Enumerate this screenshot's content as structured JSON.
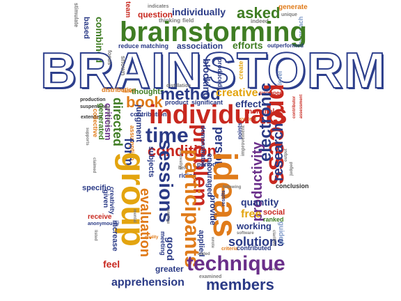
{
  "title": "BRAINSTORM",
  "palette": {
    "green": "#3f7d23",
    "orange": "#e07b1a",
    "yellow": "#e3a40f",
    "navy": "#2a3a86",
    "red": "#c8281f",
    "purple": "#6a2f8a",
    "gray": "#7a7a7a",
    "lightblue": "#7f9ac8"
  },
  "words": {
    "brainstorming": "brainstorming",
    "asked": "asked",
    "individually": "individually",
    "question": "question",
    "team": "team",
    "generate": "generate",
    "unique": "unique",
    "based": "based",
    "combined": "combined",
    "reduce_matching": "reduce matching",
    "association": "association",
    "efforts": "efforts",
    "outperformed": "outperformed",
    "indicates": "indicates",
    "thinking": "thinking",
    "field": "field",
    "indeed": "indeed",
    "blocking": "blocking",
    "produced": "produced",
    "create": "create",
    "level": "level",
    "method": "method",
    "creative": "creative",
    "effect": "effect",
    "swapped": "swapped",
    "book": "book",
    "thoughts": "thoughts",
    "individuals": "individuals",
    "process": "process",
    "time": "time",
    "condition": "condition",
    "problem": "problem",
    "research": "research",
    "electronic": "electronic",
    "productivity": "productivity",
    "person": "person",
    "form": "form",
    "sessions": "sessions",
    "group": "group",
    "participants": "participants",
    "ideas": "ideas",
    "technique": "technique",
    "members": "members",
    "solutions": "solutions",
    "working": "working",
    "quantity": "quantity",
    "free": "free",
    "social": "social",
    "ranked": "ranked",
    "conclusion": "conclusion",
    "evaluation": "evaluation",
    "apprehension": "apprehension",
    "greater": "greater",
    "feel": "feel",
    "good": "good",
    "judgment": "judgment",
    "contributions": "contributions",
    "distribution": "distribution",
    "production": "production",
    "suspending": "suspending",
    "extended": "extended",
    "directed": "directed",
    "criticism": "criticism",
    "generation": "generation",
    "collective": "collective",
    "generated": "generated",
    "specific": "specific",
    "creativity": "creativity",
    "given": "given",
    "receive": "receive",
    "anonymously": "anonymously",
    "increase": "increase",
    "quality": "quality",
    "provide": "provide",
    "encouraged": "encouraged",
    "period": "period",
    "riding": "riding",
    "subjects": "subjects",
    "contributed": "contributed",
    "guided": "guided",
    "examined": "examined",
    "product": "product",
    "significant": "significant",
    "nominal": "nominal",
    "system": "system",
    "points": "points",
    "demonstrated": "demonstrated",
    "improvement": "improvement",
    "results": "results",
    "assumption": "assumption",
    "meeting": "meeting",
    "applied": "applied",
    "distillation": "distillation",
    "shown": "shown",
    "focus": "focus",
    "stimulate": "stimulate",
    "failed": "failed",
    "held": "held",
    "contributor": "contributor",
    "assessment": "assessment",
    "following": "following",
    "software": "software",
    "criteria": "criteria",
    "supports": "supports",
    "claimed": "claimed",
    "innovative": "innovative",
    "emerge": "emerge",
    "clarified": "clarified",
    "output": "output",
    "judged": "judged",
    "prevents": "prevents",
    "listed": "listed",
    "mental": "mental",
    "added": "added",
    "wrote": "wrote",
    "approach": "approach"
  }
}
